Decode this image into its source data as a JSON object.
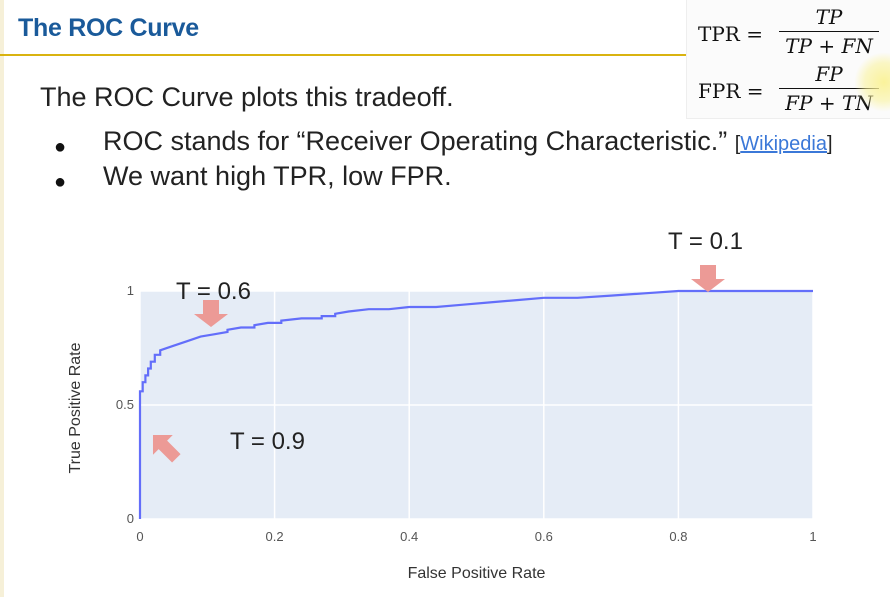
{
  "slide": {
    "title": "The ROC Curve",
    "intro": "The ROC Curve plots this tradeoff.",
    "bullets": [
      {
        "text": "ROC stands for “Receiver Operating Characteristic.”",
        "link_open": "[",
        "link_text": "Wikipedia",
        "link_close": "]"
      },
      {
        "text": "We want high TPR, low FPR."
      }
    ],
    "formulas": [
      {
        "lhs": "TPR =",
        "numerator": "TP",
        "denominator": "TP + FN"
      },
      {
        "lhs": "FPR =",
        "numerator": "FP",
        "denominator": "FP + TN"
      }
    ]
  },
  "annotations": [
    {
      "label": "T = 0.1",
      "arrow": "down"
    },
    {
      "label": "T = 0.6",
      "arrow": "down"
    },
    {
      "label": "T = 0.9",
      "arrow": "up-left"
    }
  ],
  "colors": {
    "title": "#1a5a9a",
    "rule": "#d9b310",
    "plot_bg": "#e5ecf6",
    "line": "#636efa",
    "arrow": "#ec9a96"
  },
  "chart_data": {
    "type": "line",
    "title": "",
    "xlabel": "False Positive Rate",
    "ylabel": "True Positive Rate",
    "xlim": [
      0,
      1
    ],
    "ylim": [
      0,
      1
    ],
    "x_ticks": [
      "0",
      "0.2",
      "0.4",
      "0.6",
      "0.8",
      "1"
    ],
    "y_ticks": [
      "0",
      "0.5",
      "1"
    ],
    "grid": true,
    "series": [
      {
        "x": [
          0,
          0,
          0.004,
          0.004,
          0.008,
          0.008,
          0.012,
          0.012,
          0.016,
          0.016,
          0.022,
          0.022,
          0.03,
          0.03,
          0.05,
          0.07,
          0.09,
          0.11,
          0.13,
          0.13,
          0.15,
          0.17,
          0.17,
          0.19,
          0.21,
          0.21,
          0.24,
          0.27,
          0.27,
          0.29,
          0.29,
          0.31,
          0.34,
          0.37,
          0.4,
          0.44,
          0.48,
          0.52,
          0.56,
          0.6,
          0.65,
          0.7,
          0.75,
          0.8,
          0.9,
          1
        ],
        "y": [
          0,
          0.56,
          0.56,
          0.6,
          0.6,
          0.63,
          0.63,
          0.66,
          0.66,
          0.69,
          0.69,
          0.72,
          0.72,
          0.74,
          0.76,
          0.78,
          0.8,
          0.81,
          0.82,
          0.83,
          0.84,
          0.84,
          0.85,
          0.86,
          0.86,
          0.87,
          0.88,
          0.88,
          0.89,
          0.89,
          0.9,
          0.91,
          0.92,
          0.92,
          0.93,
          0.93,
          0.94,
          0.95,
          0.96,
          0.97,
          0.97,
          0.98,
          0.99,
          1,
          1,
          1
        ]
      }
    ],
    "highlighted_thresholds": [
      {
        "label": "T = 0.1",
        "x": 0.84,
        "y": 1.0
      },
      {
        "label": "T = 0.6",
        "x": 0.1,
        "y": 0.79
      },
      {
        "label": "T = 0.9",
        "x": 0.01,
        "y": 0.4
      }
    ]
  }
}
